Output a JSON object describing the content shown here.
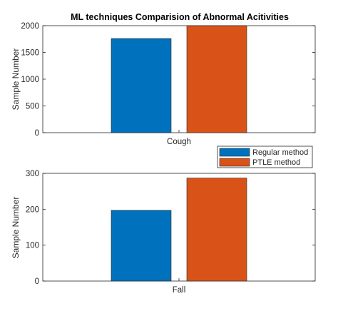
{
  "chart_data": [
    {
      "type": "bar",
      "title": "ML techniques Comparision of Abnormal Acitivities",
      "xlabel": "",
      "ylabel": "Sample Number",
      "categories": [
        "Cough"
      ],
      "ylim": [
        0,
        2000
      ],
      "yticks": [
        0,
        500,
        1000,
        1500,
        2000
      ],
      "series": [
        {
          "name": "Regular method",
          "values": [
            1760
          ],
          "color": "#0072BD"
        },
        {
          "name": "PTLE method",
          "values": [
            2000
          ],
          "color": "#D95319"
        }
      ],
      "grid": false,
      "legend": "below-right of top plot"
    },
    {
      "type": "bar",
      "title": "",
      "xlabel": "",
      "ylabel": "Sample Number",
      "categories": [
        "Fall"
      ],
      "ylim": [
        0,
        300
      ],
      "yticks": [
        0,
        100,
        200,
        300
      ],
      "series": [
        {
          "name": "Regular method",
          "values": [
            197
          ],
          "color": "#0072BD"
        },
        {
          "name": "PTLE method",
          "values": [
            287
          ],
          "color": "#D95319"
        }
      ],
      "grid": false
    }
  ],
  "legend": {
    "items": [
      {
        "label": "Regular method",
        "color": "#0072BD"
      },
      {
        "label": "PTLE method",
        "color": "#D95319"
      }
    ]
  }
}
